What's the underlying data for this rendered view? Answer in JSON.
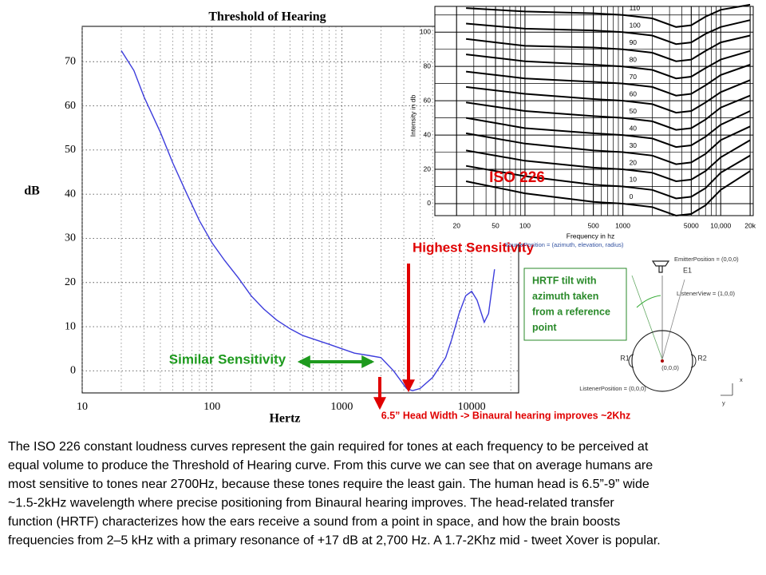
{
  "chart_data": [
    {
      "type": "line",
      "title": "Threshold of Hearing",
      "x_label": "Hertz",
      "y_label": "dB",
      "x": [
        20,
        25,
        30,
        40,
        50,
        63,
        80,
        100,
        125,
        160,
        200,
        250,
        315,
        400,
        500,
        630,
        800,
        1000,
        1250,
        1600,
        2000,
        2500,
        3150,
        3500,
        4000,
        5000,
        6300,
        7000,
        8000,
        9000,
        10000,
        11000,
        12500,
        13500,
        15000
      ],
      "values": [
        72.5,
        68,
        62,
        54,
        47,
        40.5,
        34,
        29,
        25,
        21,
        17,
        14,
        11.5,
        9.5,
        8,
        7,
        6,
        5,
        4,
        3.5,
        3,
        0,
        -4,
        -4.5,
        -4,
        -1.5,
        3,
        7,
        13,
        17,
        18,
        16,
        11,
        13,
        23
      ],
      "color": "#3c3cdc",
      "x_scale": "log",
      "xlim": [
        10,
        23000
      ],
      "xticks": [
        10,
        100,
        1000,
        10000
      ],
      "ylim": [
        -5,
        78
      ],
      "yticks": [
        0,
        10,
        20,
        30,
        40,
        50,
        60,
        70
      ],
      "grid": true,
      "annotations": [
        "Highest Sensitivity",
        "Similar Sensitivity",
        "6.5” Head Width -> Binaural hearing improves ~2Khz"
      ]
    },
    {
      "type": "line",
      "x_label": "Frequency in hz",
      "y_label": "Intensity in db",
      "annotation": "ISO 226",
      "x": [
        25,
        100,
        500,
        1000,
        2000,
        3500,
        5000,
        7000,
        10000,
        20000
      ],
      "series": [
        {
          "name": "0",
          "values": [
            13,
            6,
            1,
            0,
            -2,
            -7,
            -6,
            -1,
            8,
            19
          ]
        },
        {
          "name": "10",
          "values": [
            22,
            16,
            11,
            10,
            8,
            3,
            4,
            9,
            18,
            28
          ]
        },
        {
          "name": "20",
          "values": [
            31,
            25,
            21,
            20,
            18,
            13,
            14,
            19,
            27,
            37
          ]
        },
        {
          "name": "30",
          "values": [
            41,
            35,
            31,
            30,
            28,
            23,
            24,
            29,
            37,
            45
          ]
        },
        {
          "name": "40",
          "values": [
            50,
            44,
            41,
            40,
            38,
            33,
            34,
            39,
            46,
            54
          ]
        },
        {
          "name": "50",
          "values": [
            59,
            54,
            51,
            50,
            48,
            43,
            44,
            49,
            56,
            63
          ]
        },
        {
          "name": "60",
          "values": [
            68,
            64,
            61,
            60,
            58,
            53,
            54,
            59,
            65,
            72
          ]
        },
        {
          "name": "70",
          "values": [
            77,
            73,
            71,
            70,
            68,
            63,
            64,
            69,
            75,
            81
          ]
        },
        {
          "name": "80",
          "values": [
            87,
            83,
            81,
            80,
            78,
            73,
            74,
            79,
            84,
            89
          ]
        },
        {
          "name": "90",
          "values": [
            96,
            92,
            91,
            90,
            88,
            83,
            84,
            89,
            94,
            98
          ]
        },
        {
          "name": "100",
          "values": [
            105,
            102,
            101,
            100,
            98,
            93,
            94,
            99,
            103,
            107
          ]
        },
        {
          "name": "110",
          "values": [
            114,
            112,
            111,
            110,
            108,
            103,
            104,
            109,
            113,
            116
          ]
        }
      ],
      "color": "#000000",
      "x_scale": "log",
      "xlim": [
        12,
        21500
      ],
      "xticks": [
        20,
        50,
        100,
        500,
        1000,
        5000,
        {
          "value": 10000,
          "label": "10,000"
        },
        {
          "value": 20000,
          "label": "20k"
        }
      ],
      "ylim": [
        -7,
        115
      ],
      "yticks": [
        0,
        20,
        40,
        60,
        80,
        100
      ],
      "grid": true
    }
  ],
  "diagram": {
    "source_position": "SourcePosition = (azimuth, elevation, radius)",
    "emitter_position": "EmitterPosition = (0,0,0)",
    "emitter": "E1",
    "listener_view": "ListenerView = (1,0,0)",
    "left_ear": "R1",
    "right_ear": "R2",
    "origin": "(0,0,0)",
    "listener_position": "ListenerPosition = (0,0,0)",
    "axis_x": "x",
    "axis_y": "y",
    "note": [
      "HRTF tilt with",
      "azimuth taken",
      "from a reference",
      "point"
    ]
  },
  "paragraph": [
    "The ISO 226 constant loudness curves represent the gain required for tones at each frequency to be perceived at",
    "equal volume to produce the Threshold of Hearing curve.  From this curve we can see that on average humans are",
    "most sensitive to tones near 2700Hz, because these tones require the least gain. The human head is 6.5”-9”  wide",
    "~1.5-2kHz  wavelength where precise positioning from Binaural hearing improves. The head-related transfer",
    "function (HRTF) characterizes how the ears receive a sound from a point in space, and how the brain boosts",
    "frequencies from 2–5 kHz with a primary resonance of +17 dB at 2,700 Hz.  A 1.7-2Khz mid - tweet Xover is popular."
  ]
}
